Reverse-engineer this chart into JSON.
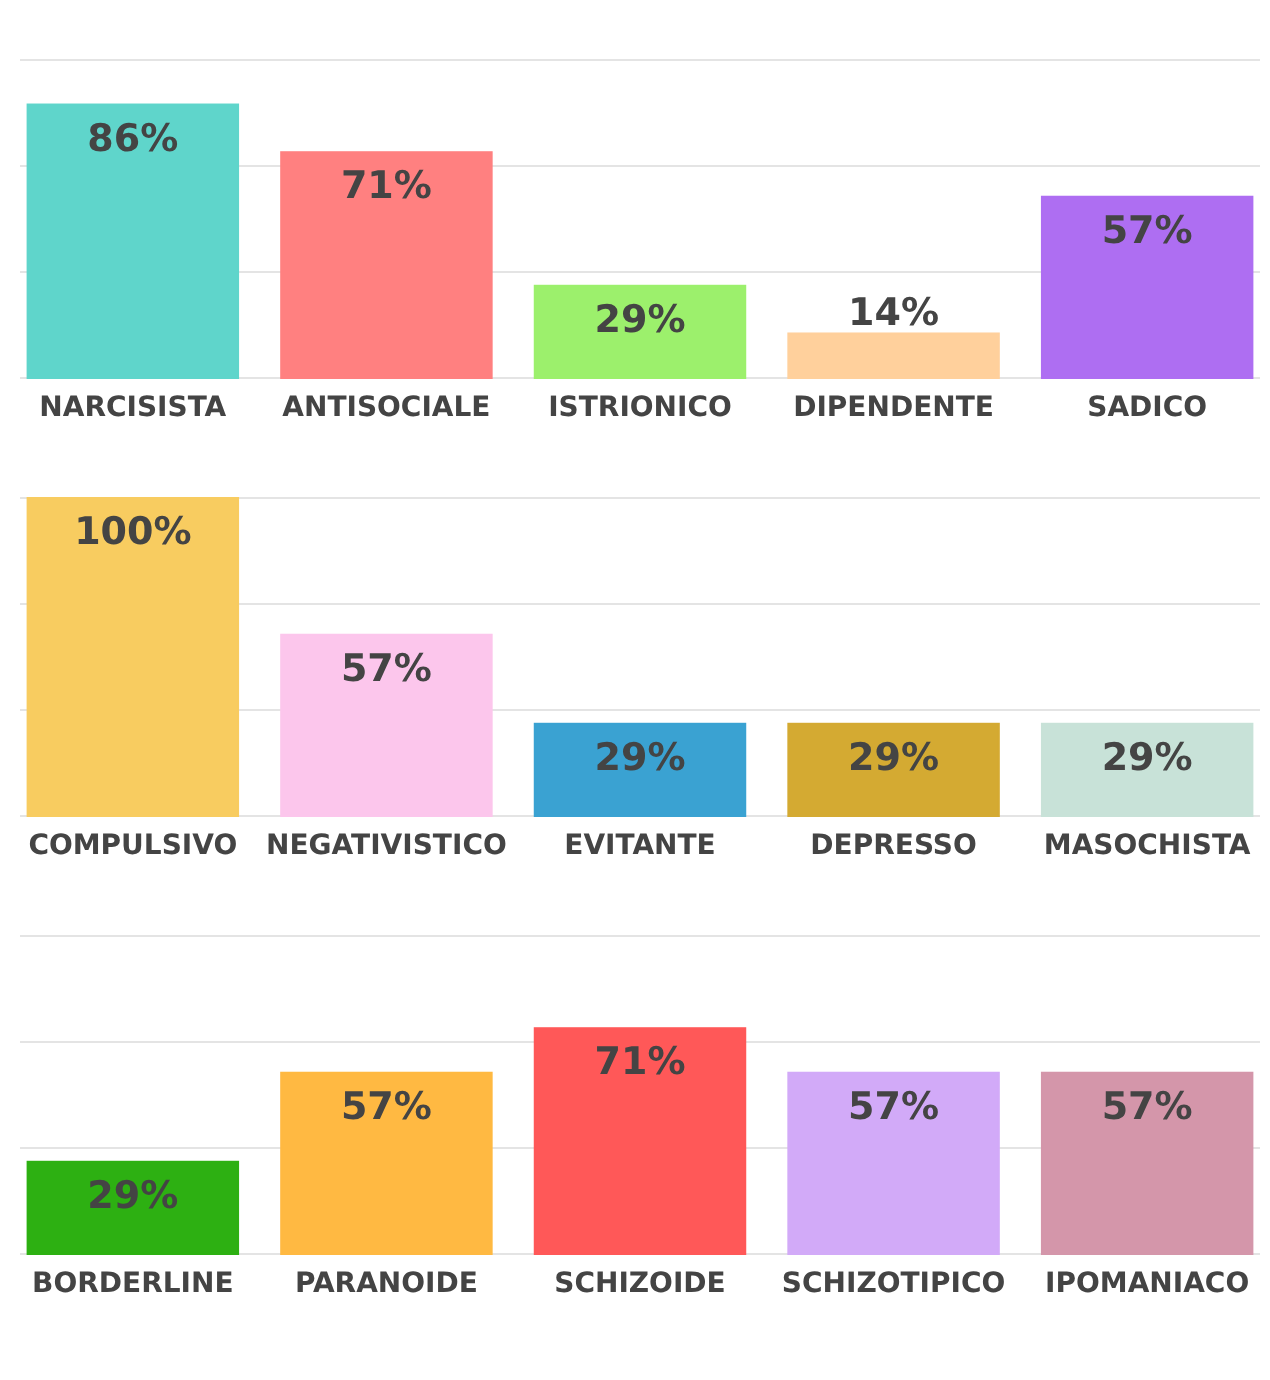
{
  "chart_data": [
    {
      "type": "bar",
      "categories": [
        "NARCISISTA",
        "ANTISOCIALE",
        "ISTRIONICO",
        "DIPENDENTE",
        "SADICO"
      ],
      "values": [
        86,
        71,
        29,
        14,
        57
      ],
      "value_labels": [
        "86%",
        "71%",
        "29%",
        "14%",
        "57%"
      ],
      "colors": [
        "#5fd5cb",
        "#ff8080",
        "#9cf06c",
        "#ffd09c",
        "#ae6ef2"
      ],
      "ylim": [
        0,
        100
      ],
      "yticks": [
        {
          "value": 0,
          "label": null
        },
        {
          "value": 33.3,
          "label": null
        },
        {
          "value": 66.7,
          "label": null
        },
        {
          "value": 100,
          "label": null
        }
      ],
      "grid": "y",
      "tick_labels": "x"
    },
    {
      "type": "bar",
      "categories": [
        "COMPULSIVO",
        "NEGATIVISTICO",
        "EVITANTE",
        "DEPRESSO",
        "MASOCHISTA"
      ],
      "values": [
        100,
        57,
        29,
        29,
        29
      ],
      "value_labels": [
        "100%",
        "57%",
        "29%",
        "29%",
        "29%"
      ],
      "colors": [
        "#f8cc60",
        "#fcc6ec",
        "#3aa2d2",
        "#d4aa32",
        "#c8e2d8"
      ],
      "ylim": [
        0,
        100
      ],
      "yticks": [
        {
          "value": 0,
          "label": null
        },
        {
          "value": 33.3,
          "label": null
        },
        {
          "value": 66.7,
          "label": null
        },
        {
          "value": 100,
          "label": null
        }
      ],
      "grid": "y",
      "tick_labels": "x"
    },
    {
      "type": "bar",
      "categories": [
        "BORDERLINE",
        "PARANOIDE",
        "SCHIZOIDE",
        "SCHIZOTIPICO",
        "IPOMANIACO"
      ],
      "values": [
        29,
        57,
        71,
        57,
        57
      ],
      "value_labels": [
        "29%",
        "57%",
        "71%",
        "57%",
        "57%"
      ],
      "colors": [
        "#2db012",
        "#ffb942",
        "#ff5858",
        "#d2aaf8",
        "#d496aa"
      ],
      "ylim": [
        0,
        100
      ],
      "yticks": [
        {
          "value": 0,
          "label": null
        },
        {
          "value": 33.3,
          "label": null
        },
        {
          "value": 66.7,
          "label": null
        },
        {
          "value": 100,
          "label": null
        }
      ],
      "grid": "y",
      "tick_labels": "x"
    }
  ]
}
